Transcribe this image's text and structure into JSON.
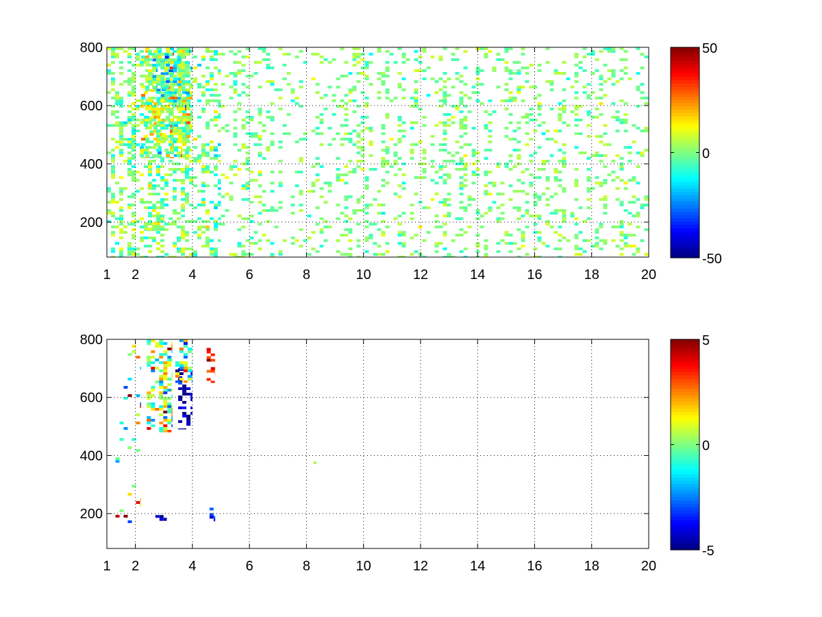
{
  "chart_data": [
    {
      "type": "heatmap",
      "title": "",
      "xlabel": "",
      "ylabel": "",
      "xlim": [
        1,
        20
      ],
      "ylim": [
        80,
        800
      ],
      "xticks": [
        1,
        2,
        4,
        6,
        8,
        10,
        12,
        14,
        16,
        18,
        20
      ],
      "xtick_labels": [
        "1",
        "2",
        "4",
        "6",
        "8",
        "10",
        "12",
        "14",
        "16",
        "18",
        "20"
      ],
      "yticks": [
        200,
        400,
        600,
        800
      ],
      "ytick_labels": [
        "200",
        "400",
        "600",
        "800"
      ],
      "grid": true,
      "colormap": "jet",
      "colorbar": {
        "range": [
          -50,
          50
        ],
        "ticks": [
          50,
          0,
          -50
        ],
        "tick_labels": [
          "50",
          "0",
          "-50"
        ]
      },
      "pattern": "sparse scattered cells over full x range; dense mixed-sign cluster near x 2-4, y 420-800; frequent near-zero cells (green/cyan/yellow)",
      "regions": [
        {
          "x": [
            2.2,
            4.0
          ],
          "y": [
            420,
            800
          ],
          "mean": 2,
          "spread": 16,
          "density": 0.55
        },
        {
          "x": [
            2.5,
            3.3
          ],
          "y": [
            470,
            760
          ],
          "mean": 12,
          "spread": 14,
          "density": 0.35
        },
        {
          "x": [
            2.6,
            3.9
          ],
          "y": [
            600,
            780
          ],
          "mean": -14,
          "spread": 12,
          "density": 0.3
        },
        {
          "x": [
            1.0,
            5.0
          ],
          "y": [
            80,
            800
          ],
          "mean": 0,
          "spread": 10,
          "density": 0.35
        },
        {
          "x": [
            5.0,
            20.0
          ],
          "y": [
            80,
            800
          ],
          "mean": 0,
          "spread": 7,
          "density": 0.18
        },
        {
          "x": [
            2.3,
            3.0
          ],
          "y": [
            170,
            200
          ],
          "mean": 5,
          "spread": 8,
          "density": 0.6
        }
      ]
    },
    {
      "type": "heatmap",
      "title": "",
      "xlabel": "",
      "ylabel": "",
      "xlim": [
        1,
        20
      ],
      "ylim": [
        80,
        800
      ],
      "xticks": [
        1,
        2,
        4,
        6,
        8,
        10,
        12,
        14,
        16,
        18,
        20
      ],
      "xtick_labels": [
        "1",
        "2",
        "4",
        "6",
        "8",
        "10",
        "12",
        "14",
        "16",
        "18",
        "20"
      ],
      "yticks": [
        200,
        400,
        600,
        800
      ],
      "ytick_labels": [
        "200",
        "400",
        "600",
        "800"
      ],
      "grid": true,
      "colormap": "jet",
      "colorbar": {
        "range": [
          -5,
          5
        ],
        "ticks": [
          5,
          0,
          -5
        ],
        "tick_labels": [
          "5",
          "0",
          "-5"
        ]
      },
      "pattern": "non-zero values confined to x 1-5; cluster near x 2.5-3.2, y 480-800; strong negative streak near x 3.6-4.0, y 500-700; isolated point near x 8.3, y 375",
      "regions": [
        {
          "x": [
            2.4,
            3.3
          ],
          "y": [
            480,
            800
          ],
          "mean": 0.5,
          "spread": 2.5,
          "density": 0.45
        },
        {
          "x": [
            3.5,
            4.0
          ],
          "y": [
            490,
            720
          ],
          "mean": -4.5,
          "spread": 0.8,
          "density": 0.3
        },
        {
          "x": [
            3.4,
            4.0
          ],
          "y": [
            650,
            800
          ],
          "mean": 0,
          "spread": 2.5,
          "density": 0.3
        },
        {
          "x": [
            4.5,
            4.8
          ],
          "y": [
            650,
            780
          ],
          "mean": 3.5,
          "spread": 1.2,
          "density": 0.35
        },
        {
          "x": [
            1.3,
            2.2
          ],
          "y": [
            80,
            800
          ],
          "mean": 0,
          "spread": 4,
          "density": 0.06
        },
        {
          "x": [
            2.7,
            3.1
          ],
          "y": [
            175,
            195
          ],
          "mean": -4.5,
          "spread": 0.5,
          "density": 0.6
        },
        {
          "x": [
            4.6,
            4.8
          ],
          "y": [
            160,
            230
          ],
          "mean": -3.5,
          "spread": 1.0,
          "density": 0.5
        },
        {
          "x": [
            8.25,
            8.35
          ],
          "y": [
            370,
            380
          ],
          "mean": 0.5,
          "spread": 0.3,
          "density": 1.0
        }
      ]
    }
  ]
}
